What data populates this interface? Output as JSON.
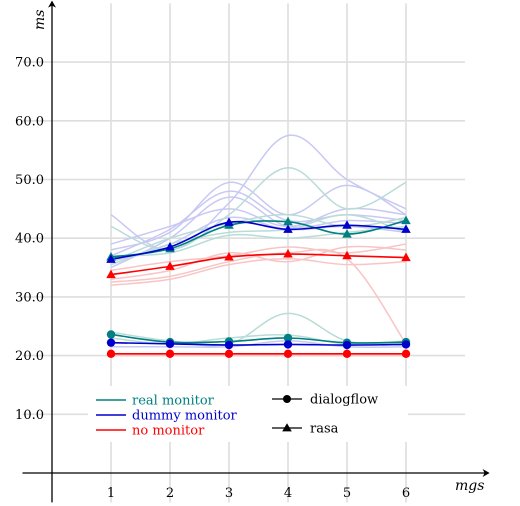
{
  "chart_data": {
    "type": "line",
    "xlabel": "mgs",
    "ylabel": "ms",
    "x": [
      1,
      2,
      3,
      4,
      5,
      6
    ],
    "xlim": [
      -0.5,
      7
    ],
    "ylim": [
      -5,
      80
    ],
    "yticks": [
      10.0,
      20.0,
      30.0,
      40.0,
      50.0,
      60.0,
      70.0
    ],
    "ytick_labels": [
      "10.0",
      "20.0",
      "30.0",
      "40.0",
      "50.0",
      "60.0",
      "70.0"
    ],
    "xtick_labels": [
      "1",
      "2",
      "3",
      "4",
      "5",
      "6"
    ],
    "grid": true,
    "legend_position": "bottom-left",
    "colors": {
      "real": "#008080",
      "dummy": "#0000cc",
      "none": "#ff0000",
      "real_light": "#b8dcd8",
      "dummy_light": "#c8c8f4",
      "none_light": "#f8c4c4",
      "grid": "#dedede"
    },
    "series": [
      {
        "name": "real monitor",
        "platform": "rasa",
        "color": "#008080",
        "marker": "triangle",
        "values": [
          36.8,
          38.2,
          42.2,
          42.8,
          40.7,
          43.0
        ]
      },
      {
        "name": "dummy monitor",
        "platform": "rasa",
        "color": "#0000cc",
        "marker": "triangle",
        "values": [
          36.4,
          38.5,
          42.7,
          41.5,
          42.2,
          41.5
        ]
      },
      {
        "name": "no monitor",
        "platform": "rasa",
        "color": "#ff0000",
        "marker": "triangle",
        "values": [
          33.8,
          35.2,
          36.8,
          37.3,
          37.0,
          36.7
        ]
      },
      {
        "name": "real monitor",
        "platform": "dialogflow",
        "color": "#008080",
        "marker": "circle",
        "values": [
          23.6,
          22.3,
          22.4,
          23.0,
          22.2,
          22.3
        ]
      },
      {
        "name": "dummy monitor",
        "platform": "dialogflow",
        "color": "#0000cc",
        "marker": "circle",
        "values": [
          22.2,
          22.0,
          21.8,
          21.9,
          21.8,
          21.9
        ]
      },
      {
        "name": "no monitor",
        "platform": "dialogflow",
        "color": "#ff0000",
        "marker": "circle",
        "values": [
          20.3,
          20.3,
          20.3,
          20.3,
          20.3,
          20.3
        ]
      }
    ],
    "background_runs": [
      {
        "group": "dummy",
        "values": [
          44.0,
          38.0,
          46.0,
          57.5,
          50.0,
          45.0
        ]
      },
      {
        "group": "dummy",
        "values": [
          38.0,
          41.0,
          49.5,
          44.0,
          49.0,
          44.0
        ]
      },
      {
        "group": "dummy",
        "values": [
          37.0,
          41.5,
          48.0,
          43.0,
          44.0,
          43.0
        ]
      },
      {
        "group": "dummy",
        "values": [
          35.0,
          40.0,
          47.0,
          42.0,
          43.0,
          42.5
        ]
      },
      {
        "group": "dummy",
        "values": [
          39.0,
          42.0,
          45.0,
          42.0,
          45.0,
          44.0
        ]
      },
      {
        "group": "dummy",
        "values": [
          36.0,
          39.0,
          43.5,
          41.5,
          42.0,
          41.0
        ]
      },
      {
        "group": "real",
        "values": [
          42.0,
          38.0,
          44.0,
          52.0,
          45.0,
          49.5
        ]
      },
      {
        "group": "real",
        "values": [
          36.0,
          40.0,
          42.5,
          44.0,
          42.0,
          43.5
        ]
      },
      {
        "group": "real",
        "values": [
          35.5,
          39.0,
          41.0,
          41.5,
          44.0,
          41.0
        ]
      },
      {
        "group": "real",
        "values": [
          37.0,
          37.5,
          40.5,
          40.0,
          41.0,
          42.0
        ]
      },
      {
        "group": "none",
        "values": [
          32.5,
          33.5,
          36.0,
          37.5,
          36.5,
          22.0
        ]
      },
      {
        "group": "none",
        "values": [
          33.0,
          34.5,
          37.5,
          36.0,
          38.5,
          38.0
        ]
      },
      {
        "group": "none",
        "values": [
          34.5,
          36.0,
          37.0,
          38.5,
          37.5,
          39.0
        ]
      },
      {
        "group": "none",
        "values": [
          32.0,
          33.0,
          35.5,
          36.5,
          35.5,
          36.0
        ]
      },
      {
        "group": "real",
        "values": [
          24.0,
          22.5,
          22.0,
          27.2,
          22.5,
          22.0
        ]
      },
      {
        "group": "real",
        "values": [
          23.0,
          22.0,
          23.0,
          23.5,
          22.0,
          22.5
        ]
      },
      {
        "group": "dummy",
        "values": [
          21.5,
          21.5,
          21.5,
          22.5,
          21.5,
          21.5
        ]
      },
      {
        "group": "none",
        "values": [
          20.0,
          20.0,
          20.0,
          20.0,
          20.0,
          20.0
        ]
      }
    ],
    "legend": {
      "monitors": [
        {
          "label": "real monitor",
          "color": "#008080"
        },
        {
          "label": "dummy monitor",
          "color": "#0000cc"
        },
        {
          "label": "no monitor",
          "color": "#ff0000"
        }
      ],
      "platforms": [
        {
          "label": "dialogflow",
          "marker": "circle"
        },
        {
          "label": "rasa",
          "marker": "triangle"
        }
      ]
    }
  }
}
